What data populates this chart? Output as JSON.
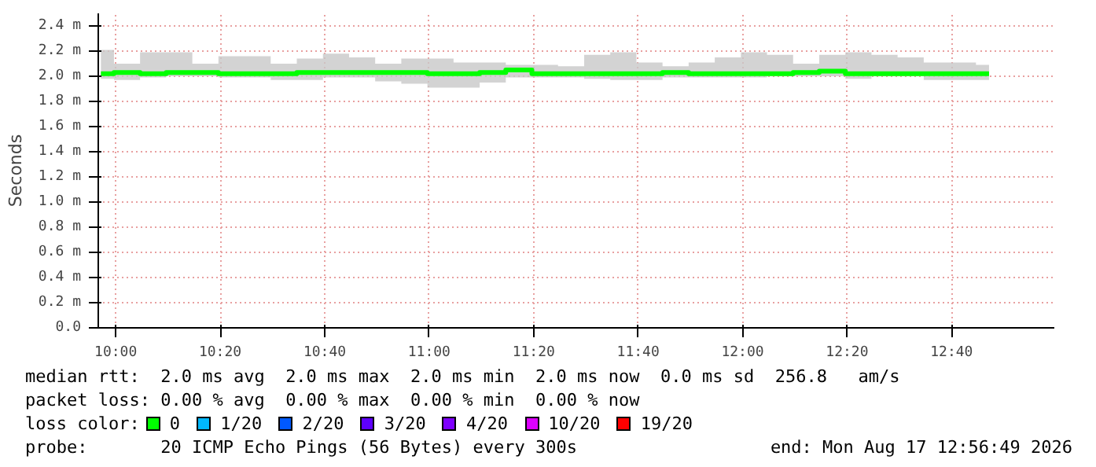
{
  "chart_data": {
    "type": "step",
    "ylabel": "Seconds",
    "legend_title": "loss color:",
    "legend": "bottom",
    "grid": true,
    "x": [
      9.9528,
      10.0361,
      10.1194,
      10.2028,
      10.2861,
      10.3694,
      10.4528,
      10.5361,
      10.6194,
      10.7028,
      10.7861,
      10.8694,
      10.9528,
      11.0361,
      11.1194,
      11.2028,
      11.2861,
      11.3694,
      11.4528,
      11.5361,
      11.6194,
      11.7028,
      11.7861,
      11.8694,
      11.9528,
      12.0361,
      12.1194,
      12.2028,
      12.2861,
      12.3694,
      12.4528,
      12.5361,
      12.6194,
      12.7028,
      12.7861
    ],
    "xlim": [
      9.9444,
      12.9944
    ],
    "xticks": [
      {
        "value": 10,
        "label": "10:00"
      },
      {
        "value": 10.3333,
        "label": "10:20"
      },
      {
        "value": 10.6667,
        "label": "10:40"
      },
      {
        "value": 11,
        "label": "11:00"
      },
      {
        "value": 11.3333,
        "label": "11:20"
      },
      {
        "value": 11.6667,
        "label": "11:40"
      },
      {
        "value": 12,
        "label": "12:00"
      },
      {
        "value": 12.3333,
        "label": "12:20"
      },
      {
        "value": 12.6667,
        "label": "12:40"
      }
    ],
    "ylim": [
      0,
      2.5
    ],
    "yticks": [
      {
        "value": 0,
        "label": "0.0"
      },
      {
        "value": 0.2,
        "label": "0.2 m"
      },
      {
        "value": 0.4,
        "label": "0.4 m"
      },
      {
        "value": 0.6,
        "label": "0.6 m"
      },
      {
        "value": 0.8,
        "label": "0.8 m"
      },
      {
        "value": 1.0,
        "label": "1.0 m"
      },
      {
        "value": 1.2,
        "label": "1.2 m"
      },
      {
        "value": 1.4,
        "label": "1.4 m"
      },
      {
        "value": 1.6,
        "label": "1.6 m"
      },
      {
        "value": 1.8,
        "label": "1.8 m"
      },
      {
        "value": 2.0,
        "label": "2.0 m"
      },
      {
        "value": 2.2,
        "label": "2.2 m"
      },
      {
        "value": 2.4,
        "label": "2.4 m"
      }
    ],
    "series": [
      {
        "name": "0",
        "color": "#00ff00",
        "values": [
          2.02,
          2.03,
          2.02,
          2.03,
          2.03,
          2.02,
          2.02,
          2.02,
          2.03,
          2.03,
          2.03,
          2.03,
          2.03,
          2.02,
          2.02,
          2.03,
          2.05,
          2.02,
          2.02,
          2.02,
          2.02,
          2.02,
          2.03,
          2.02,
          2.02,
          2.02,
          2.02,
          2.03,
          2.04,
          2.02,
          2.02,
          2.02,
          2.02,
          2.02,
          2.02
        ],
        "lower": [
          1.98,
          1.97,
          1.99,
          2.0,
          2.0,
          1.99,
          1.99,
          1.97,
          1.97,
          1.99,
          1.99,
          1.96,
          1.94,
          1.91,
          1.91,
          1.95,
          1.99,
          1.99,
          1.99,
          1.98,
          1.97,
          1.97,
          1.99,
          1.99,
          1.99,
          1.99,
          2.0,
          2.0,
          2.0,
          1.98,
          2.0,
          2.0,
          1.97,
          1.97,
          1.97
        ],
        "upper": [
          2.21,
          2.1,
          2.19,
          2.19,
          2.1,
          2.16,
          2.16,
          2.1,
          2.14,
          2.18,
          2.15,
          2.1,
          2.14,
          2.14,
          2.11,
          2.11,
          2.09,
          2.09,
          2.08,
          2.17,
          2.19,
          2.11,
          2.08,
          2.11,
          2.15,
          2.19,
          2.17,
          2.1,
          2.17,
          2.19,
          2.17,
          2.15,
          2.11,
          2.11,
          2.09
        ]
      },
      {
        "name": "1/20",
        "color": "#00b8ff",
        "values": [
          null,
          null,
          null,
          null,
          null,
          null,
          null,
          null,
          null,
          null,
          null,
          null,
          null,
          null,
          null,
          null,
          null,
          null,
          null,
          null,
          null,
          null,
          null,
          null,
          null,
          null,
          null,
          null,
          null,
          null,
          null,
          null,
          null,
          null,
          null
        ]
      },
      {
        "name": "2/20",
        "color": "#0059ff",
        "values": [
          null,
          null,
          null,
          null,
          null,
          null,
          null,
          null,
          null,
          null,
          null,
          null,
          null,
          null,
          null,
          null,
          null,
          null,
          null,
          null,
          null,
          null,
          null,
          null,
          null,
          null,
          null,
          null,
          null,
          null,
          null,
          null,
          null,
          null,
          null
        ]
      },
      {
        "name": "3/20",
        "color": "#5e00ff",
        "values": [
          null,
          null,
          null,
          null,
          null,
          null,
          null,
          null,
          null,
          null,
          null,
          null,
          null,
          null,
          null,
          null,
          null,
          null,
          null,
          null,
          null,
          null,
          null,
          null,
          null,
          null,
          null,
          null,
          null,
          null,
          null,
          null,
          null,
          null,
          null
        ]
      },
      {
        "name": "4/20",
        "color": "#7e00ff",
        "values": [
          null,
          null,
          null,
          null,
          null,
          null,
          null,
          null,
          null,
          null,
          null,
          null,
          null,
          null,
          null,
          null,
          null,
          null,
          null,
          null,
          null,
          null,
          null,
          null,
          null,
          null,
          null,
          null,
          null,
          null,
          null,
          null,
          null,
          null,
          null
        ]
      },
      {
        "name": "10/20",
        "color": "#dd00ff",
        "values": [
          null,
          null,
          null,
          null,
          null,
          null,
          null,
          null,
          null,
          null,
          null,
          null,
          null,
          null,
          null,
          null,
          null,
          null,
          null,
          null,
          null,
          null,
          null,
          null,
          null,
          null,
          null,
          null,
          null,
          null,
          null,
          null,
          null,
          null,
          null
        ]
      },
      {
        "name": "19/20",
        "color": "#ff0000",
        "values": [
          null,
          null,
          null,
          null,
          null,
          null,
          null,
          null,
          null,
          null,
          null,
          null,
          null,
          null,
          null,
          null,
          null,
          null,
          null,
          null,
          null,
          null,
          null,
          null,
          null,
          null,
          null,
          null,
          null,
          null,
          null,
          null,
          null,
          null,
          null
        ]
      }
    ],
    "annotations": [
      "median rtt:  2.0 ms avg  2.0 ms max  2.0 ms min  2.0 ms now  0.0 ms sd  256.8   am/s",
      "packet loss: 0.00 % avg  0.00 % max  0.00 % min  0.00 % now",
      "probe:       20 ICMP Echo Pings (56 Bytes) every 300s",
      "end: Mon Aug 17 12:56:49 2026"
    ]
  }
}
